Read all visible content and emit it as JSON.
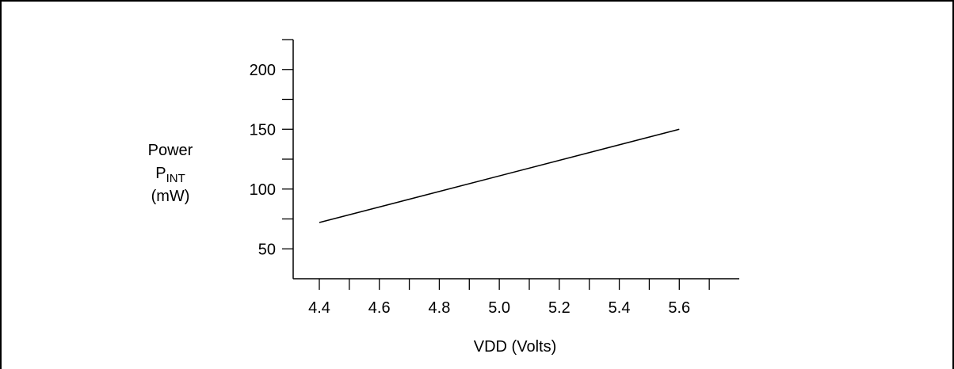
{
  "chart_data": {
    "type": "line",
    "title": "",
    "xlabel": "VDD (Volts)",
    "ylabel": {
      "line1": "Power",
      "line2_main": "P",
      "line2_sub": "INT",
      "line3": "(mW)"
    },
    "xlim": [
      4.4,
      5.8
    ],
    "ylim": [
      25,
      225
    ],
    "x_tick_labels": [
      "4.4",
      "4.6",
      "4.8",
      "5.0",
      "5.2",
      "5.4",
      "5.6"
    ],
    "x_tick_values": [
      4.4,
      4.6,
      4.8,
      5.0,
      5.2,
      5.4,
      5.6
    ],
    "x_minor_ticks": [
      4.5,
      4.7,
      4.9,
      5.1,
      5.3,
      5.5,
      5.7
    ],
    "y_tick_labels": [
      "50",
      "100",
      "150",
      "200"
    ],
    "y_tick_values": [
      50,
      100,
      150,
      200
    ],
    "y_minor_ticks": [
      75,
      125,
      175,
      225
    ],
    "grid": false,
    "series": [
      {
        "x": [
          4.4,
          5.6
        ],
        "y": [
          72,
          150
        ]
      }
    ]
  }
}
